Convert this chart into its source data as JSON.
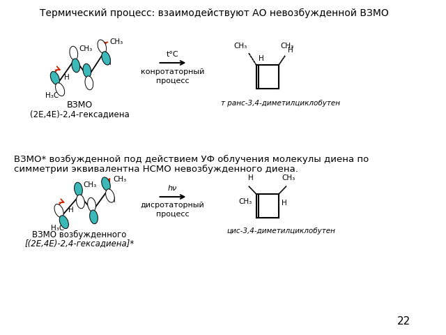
{
  "title_text": "Термический процесс: взаимодействуют АО невозбужденной ВЗМО",
  "middle_text_line1": "ВЗМО* возбужденной под действием УФ облучения молекулы диена по",
  "middle_text_line2": "симметрии эквивалентна НСМО невозбужденного диена.",
  "page_number": "22",
  "background_color": "#ffffff",
  "text_color": "#000000",
  "teal_color": "#3CB8B8",
  "red_color": "#CC2200",
  "top_left_label1": "ВЗМО",
  "top_left_label2": "(2E,4E)-2,4-гексадиена",
  "top_right_label": "т ранс-3,4-диметилциклобутен",
  "top_arrow_label": "t°C",
  "top_process_label": "конротаторный\nпроцесс",
  "bottom_left_label1": "ВЗМО возбужденного",
  "bottom_left_label2": "[(2E,4E)-2,4-гексадиена]*",
  "bottom_right_label": "цис-3,4-диметилциклобутен",
  "bottom_arrow_label": "hν",
  "bottom_process_label": "дисротаторный\nпроцесс"
}
